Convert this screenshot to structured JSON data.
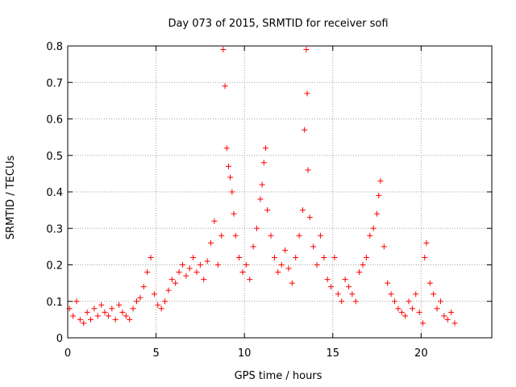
{
  "chart_data": {
    "type": "scatter",
    "title": "Day 073 of 2015, SRMTID for receiver sofi",
    "xlabel": "GPS time / hours",
    "ylabel": "SRMTID / TECUs",
    "xlim": [
      0,
      24
    ],
    "ylim": [
      0,
      0.8
    ],
    "xticks": [
      "0",
      "5",
      "10",
      "15",
      "20"
    ],
    "yticks": [
      "0",
      "0.1",
      "0.2",
      "0.3",
      "0.4",
      "0.5",
      "0.6",
      "0.7",
      "0.8"
    ],
    "grid": true,
    "marker": "+",
    "series": [
      {
        "name": "SRMTID",
        "color": "#ff0000",
        "x": [
          0.1,
          0.3,
          0.5,
          0.7,
          0.9,
          1.1,
          1.3,
          1.5,
          1.7,
          1.9,
          2.1,
          2.3,
          2.5,
          2.7,
          2.9,
          3.1,
          3.3,
          3.5,
          3.7,
          3.9,
          4.1,
          4.3,
          4.5,
          4.7,
          4.9,
          5.1,
          5.3,
          5.5,
          5.7,
          5.9,
          6.1,
          6.3,
          6.5,
          6.7,
          6.9,
          7.1,
          7.3,
          7.5,
          7.7,
          7.9,
          8.1,
          8.3,
          8.5,
          8.7,
          8.8,
          8.9,
          9.0,
          9.1,
          9.2,
          9.3,
          9.4,
          9.5,
          9.7,
          9.9,
          10.1,
          10.3,
          10.5,
          10.7,
          10.9,
          11.0,
          11.1,
          11.2,
          11.3,
          11.5,
          11.7,
          11.9,
          12.1,
          12.3,
          12.5,
          12.7,
          12.9,
          13.1,
          13.3,
          13.4,
          13.5,
          13.55,
          13.6,
          13.7,
          13.9,
          14.1,
          14.3,
          14.5,
          14.7,
          14.9,
          15.1,
          15.3,
          15.5,
          15.7,
          15.9,
          16.1,
          16.3,
          16.5,
          16.7,
          16.9,
          17.1,
          17.3,
          17.5,
          17.6,
          17.7,
          17.9,
          18.1,
          18.3,
          18.5,
          18.7,
          18.9,
          19.1,
          19.3,
          19.5,
          19.7,
          19.9,
          20.1,
          20.2,
          20.3,
          20.5,
          20.7,
          20.9,
          21.1,
          21.3,
          21.5,
          21.7,
          21.9
        ],
        "y": [
          0.08,
          0.06,
          0.1,
          0.05,
          0.04,
          0.07,
          0.05,
          0.08,
          0.06,
          0.09,
          0.07,
          0.06,
          0.08,
          0.05,
          0.09,
          0.07,
          0.06,
          0.05,
          0.08,
          0.1,
          0.11,
          0.14,
          0.18,
          0.22,
          0.12,
          0.09,
          0.08,
          0.1,
          0.13,
          0.16,
          0.15,
          0.18,
          0.2,
          0.17,
          0.19,
          0.22,
          0.18,
          0.2,
          0.16,
          0.21,
          0.26,
          0.32,
          0.2,
          0.28,
          0.79,
          0.69,
          0.52,
          0.47,
          0.44,
          0.4,
          0.34,
          0.28,
          0.22,
          0.18,
          0.2,
          0.16,
          0.25,
          0.3,
          0.38,
          0.42,
          0.48,
          0.52,
          0.35,
          0.28,
          0.22,
          0.18,
          0.2,
          0.24,
          0.19,
          0.15,
          0.22,
          0.28,
          0.35,
          0.57,
          0.79,
          0.67,
          0.46,
          0.33,
          0.25,
          0.2,
          0.28,
          0.22,
          0.16,
          0.14,
          0.22,
          0.12,
          0.1,
          0.16,
          0.14,
          0.12,
          0.1,
          0.18,
          0.2,
          0.22,
          0.28,
          0.3,
          0.34,
          0.39,
          0.43,
          0.25,
          0.15,
          0.12,
          0.1,
          0.08,
          0.07,
          0.06,
          0.1,
          0.08,
          0.12,
          0.07,
          0.04,
          0.22,
          0.26,
          0.15,
          0.12,
          0.08,
          0.1,
          0.06,
          0.05,
          0.07,
          0.04
        ]
      }
    ]
  }
}
